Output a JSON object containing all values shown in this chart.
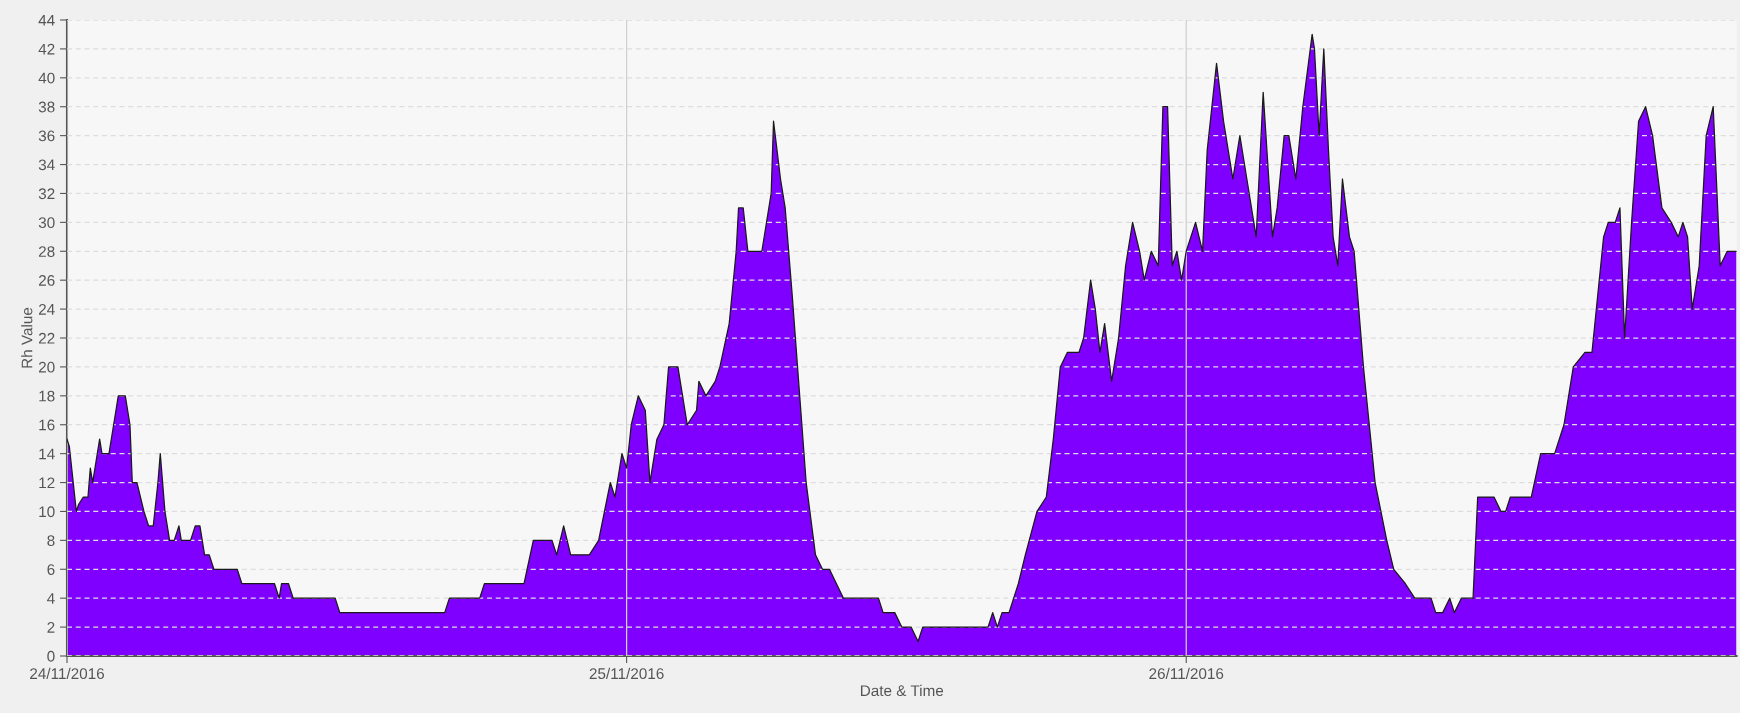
{
  "chart_data": {
    "type": "area",
    "xlabel": "Date & Time",
    "ylabel": "Rh Value",
    "x": [
      "2016-11-24T00:00",
      "2016-11-24T00:06",
      "2016-11-24T00:24",
      "2016-11-24T00:30",
      "2016-11-24T00:42",
      "2016-11-24T00:54",
      "2016-11-24T01:00",
      "2016-11-24T01:06",
      "2016-11-24T01:24",
      "2016-11-24T01:30",
      "2016-11-24T01:48",
      "2016-11-24T02:00",
      "2016-11-24T02:12",
      "2016-11-24T02:30",
      "2016-11-24T02:42",
      "2016-11-24T02:48",
      "2016-11-24T03:00",
      "2016-11-24T03:18",
      "2016-11-24T03:30",
      "2016-11-24T03:42",
      "2016-11-24T03:54",
      "2016-11-24T04:00",
      "2016-11-24T04:12",
      "2016-11-24T04:24",
      "2016-11-24T04:36",
      "2016-11-24T04:48",
      "2016-11-24T04:54",
      "2016-11-24T05:18",
      "2016-11-24T05:30",
      "2016-11-24T05:42",
      "2016-11-24T05:54",
      "2016-11-24T06:06",
      "2016-11-24T06:18",
      "2016-11-24T07:18",
      "2016-11-24T07:30",
      "2016-11-24T08:54",
      "2016-11-24T09:06",
      "2016-11-24T09:12",
      "2016-11-24T09:30",
      "2016-11-24T09:42",
      "2016-11-24T11:30",
      "2016-11-24T11:42",
      "2016-11-24T16:12",
      "2016-11-24T16:24",
      "2016-11-24T17:42",
      "2016-11-24T17:54",
      "2016-11-24T19:36",
      "2016-11-24T20:00",
      "2016-11-24T20:48",
      "2016-11-24T21:00",
      "2016-11-24T21:18",
      "2016-11-24T21:36",
      "2016-11-24T22:24",
      "2016-11-24T22:48",
      "2016-11-24T23:18",
      "2016-11-24T23:30",
      "2016-11-24T23:48",
      "2016-11-25T00:00",
      "2016-11-25T00:12",
      "2016-11-25T00:30",
      "2016-11-25T00:48",
      "2016-11-25T01:00",
      "2016-11-25T01:18",
      "2016-11-25T01:36",
      "2016-11-25T01:48",
      "2016-11-25T02:12",
      "2016-11-25T02:36",
      "2016-11-25T03:00",
      "2016-11-25T03:06",
      "2016-11-25T03:24",
      "2016-11-25T03:48",
      "2016-11-25T04:00",
      "2016-11-25T04:24",
      "2016-11-25T04:42",
      "2016-11-25T04:48",
      "2016-11-25T05:00",
      "2016-11-25T05:12",
      "2016-11-25T05:48",
      "2016-11-25T06:00",
      "2016-11-25T06:12",
      "2016-11-25T06:18",
      "2016-11-25T06:36",
      "2016-11-25T06:48",
      "2016-11-25T07:06",
      "2016-11-25T07:42",
      "2016-11-25T08:06",
      "2016-11-25T08:24",
      "2016-11-25T08:42",
      "2016-11-25T09:00",
      "2016-11-25T09:18",
      "2016-11-25T10:48",
      "2016-11-25T11:00",
      "2016-11-25T11:30",
      "2016-11-25T11:48",
      "2016-11-25T12:12",
      "2016-11-25T12:30",
      "2016-11-25T12:42",
      "2016-11-25T15:30",
      "2016-11-25T15:42",
      "2016-11-25T15:54",
      "2016-11-25T16:06",
      "2016-11-25T16:24",
      "2016-11-25T16:48",
      "2016-11-25T17:06",
      "2016-11-25T17:36",
      "2016-11-25T18:00",
      "2016-11-25T18:18",
      "2016-11-25T18:36",
      "2016-11-25T18:54",
      "2016-11-25T19:24",
      "2016-11-25T19:36",
      "2016-11-25T19:54",
      "2016-11-25T20:06",
      "2016-11-25T20:18",
      "2016-11-25T20:30",
      "2016-11-25T20:48",
      "2016-11-25T21:06",
      "2016-11-25T21:24",
      "2016-11-25T21:42",
      "2016-11-25T22:00",
      "2016-11-25T22:12",
      "2016-11-25T22:30",
      "2016-11-25T22:48",
      "2016-11-25T23:00",
      "2016-11-25T23:12",
      "2016-11-25T23:24",
      "2016-11-25T23:36",
      "2016-11-25T23:48",
      "2016-11-26T00:00",
      "2016-11-26T00:24",
      "2016-11-26T00:42",
      "2016-11-26T00:54",
      "2016-11-26T01:18",
      "2016-11-26T01:36",
      "2016-11-26T02:00",
      "2016-11-26T02:18",
      "2016-11-26T02:36",
      "2016-11-26T03:00",
      "2016-11-26T03:18",
      "2016-11-26T03:42",
      "2016-11-26T03:54",
      "2016-11-26T04:12",
      "2016-11-26T04:24",
      "2016-11-26T04:42",
      "2016-11-26T05:00",
      "2016-11-26T05:24",
      "2016-11-26T05:30",
      "2016-11-26T05:42",
      "2016-11-26T05:54",
      "2016-11-26T06:06",
      "2016-11-26T06:18",
      "2016-11-26T06:30",
      "2016-11-26T06:42",
      "2016-11-26T07:00",
      "2016-11-26T07:12",
      "2016-11-26T07:36",
      "2016-11-26T08:06",
      "2016-11-26T08:36",
      "2016-11-26T08:54",
      "2016-11-26T09:24",
      "2016-11-26T09:48",
      "2016-11-26T10:30",
      "2016-11-26T10:42",
      "2016-11-26T11:00",
      "2016-11-26T11:18",
      "2016-11-26T11:30",
      "2016-11-26T11:48",
      "2016-11-26T12:18",
      "2016-11-26T12:30",
      "2016-11-26T13:12",
      "2016-11-26T13:30",
      "2016-11-26T13:42",
      "2016-11-26T13:54",
      "2016-11-26T14:48",
      "2016-11-26T15:12",
      "2016-11-26T15:48",
      "2016-11-26T16:12",
      "2016-11-26T16:36",
      "2016-11-26T17:06",
      "2016-11-26T17:24",
      "2016-11-26T17:54",
      "2016-11-26T18:06",
      "2016-11-26T18:24",
      "2016-11-26T18:36",
      "2016-11-26T18:48",
      "2016-11-26T19:06",
      "2016-11-26T19:24",
      "2016-11-26T19:42",
      "2016-11-26T20:00",
      "2016-11-26T20:24",
      "2016-11-26T20:48",
      "2016-11-26T21:06",
      "2016-11-26T21:18",
      "2016-11-26T21:30",
      "2016-11-26T21:42",
      "2016-11-26T22:00",
      "2016-11-26T22:18",
      "2016-11-26T22:36",
      "2016-11-26T22:54",
      "2016-11-26T23:12",
      "2016-11-26T23:36"
    ],
    "series": [
      {
        "color": "#7f00ff",
        "values": [
          15,
          14.5,
          10,
          10.5,
          11,
          11,
          13,
          12,
          15,
          14,
          14,
          16,
          18,
          18,
          16,
          12,
          12,
          10,
          9,
          9,
          12,
          14,
          10,
          8,
          8,
          9,
          8,
          8,
          9,
          9,
          7,
          7,
          6,
          6,
          5,
          5,
          4,
          5,
          5,
          4,
          4,
          3,
          3,
          4,
          4,
          5,
          5,
          8,
          8,
          7,
          9,
          7,
          7,
          8,
          12,
          11,
          14,
          13,
          16,
          18,
          17,
          12,
          15,
          16,
          20,
          20,
          16,
          17,
          19,
          18,
          19,
          20,
          23,
          28,
          31,
          31,
          28,
          28,
          30,
          32,
          37,
          33,
          31,
          25,
          12,
          7,
          6,
          6,
          5,
          4,
          4,
          3,
          3,
          2,
          2,
          1,
          2,
          2,
          3,
          2,
          3,
          3,
          5,
          7,
          10,
          11,
          15,
          20,
          21,
          21,
          22,
          26,
          24,
          21,
          23,
          19,
          22,
          27,
          30,
          28,
          26,
          28,
          27,
          38,
          38,
          27,
          28,
          26,
          28,
          30,
          28,
          35,
          41,
          37,
          33,
          36,
          33,
          29,
          39,
          29,
          31,
          36,
          36,
          33,
          38,
          43,
          42,
          36,
          42,
          35,
          29,
          27,
          33,
          29,
          28,
          20,
          12,
          8,
          6,
          5,
          4,
          4,
          3,
          3,
          4,
          3,
          4,
          4,
          11,
          11,
          10,
          10,
          11,
          11,
          14,
          14,
          16,
          20,
          21,
          21,
          29,
          30,
          30,
          31,
          22,
          30,
          37,
          38,
          36,
          31,
          30,
          29,
          30,
          29,
          24,
          27,
          36,
          38,
          27,
          28,
          28
        ]
      }
    ],
    "xlim": [
      "2016-11-24T00:00",
      "2016-11-26T23:36"
    ],
    "xticks": [
      {
        "value": "2016-11-24",
        "label": "24/11/2016"
      },
      {
        "value": "2016-11-25",
        "label": "25/11/2016"
      },
      {
        "value": "2016-11-26",
        "label": "26/11/2016"
      }
    ],
    "ylim": [
      0,
      44
    ],
    "yticks": [
      0,
      2,
      4,
      6,
      8,
      10,
      12,
      14,
      16,
      18,
      20,
      22,
      24,
      26,
      28,
      30,
      32,
      34,
      36,
      38,
      40,
      42,
      44
    ],
    "grid": true
  }
}
